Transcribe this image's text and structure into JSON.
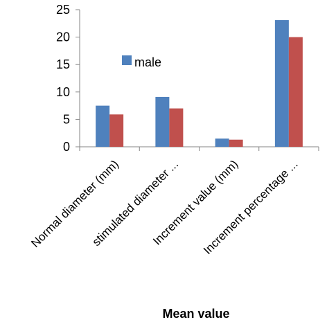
{
  "chart_data": {
    "type": "bar",
    "categories": [
      "Normal diameter (mm)",
      "stimulated diameter ...",
      "Increment value (mm)",
      "Increment percentage ..."
    ],
    "series": [
      {
        "name": "male",
        "values": [
          7.5,
          9.1,
          1.5,
          23.1
        ],
        "color": "#4F81BD"
      },
      {
        "values": [
          5.9,
          7.0,
          1.3,
          20.0
        ],
        "color": "#C0504D"
      }
    ],
    "title": "",
    "xlabel": "Mean value",
    "ylabel": "",
    "ylim": [
      0,
      25
    ],
    "yticks": [
      0,
      5,
      10,
      15,
      20,
      25
    ],
    "grid": false,
    "legend": "inside-top-left"
  }
}
